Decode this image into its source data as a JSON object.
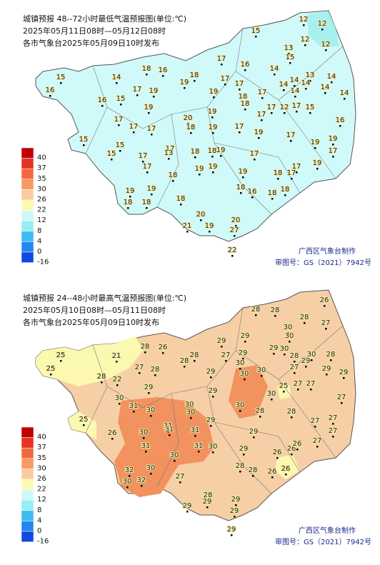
{
  "panels": [
    {
      "title": "城镇预报 48--72小时最低气温预报图(单位:℃)",
      "period": "2025年05月11日08时—05月12日08时",
      "issuer": "各市气象台2025年05月09日10时发布",
      "values": [
        15,
        16,
        14,
        18,
        16,
        18,
        19,
        17,
        19,
        16,
        15,
        19,
        17,
        17,
        19,
        18,
        18,
        17,
        14,
        14,
        14,
        13,
        14,
        14,
        14,
        14,
        12,
        17,
        15,
        16,
        16,
        17,
        15,
        12,
        12,
        12,
        12,
        13,
        15,
        14,
        17,
        17,
        17,
        20,
        18,
        19,
        19,
        17,
        17,
        17,
        19,
        17,
        19,
        19,
        17,
        15,
        15,
        15,
        17,
        17,
        13,
        18,
        18,
        19,
        17,
        17,
        18,
        19,
        19,
        19,
        18,
        17,
        17,
        19,
        19,
        19,
        18,
        18,
        18,
        18,
        16,
        18,
        18,
        20,
        21,
        19,
        20,
        27,
        22
      ]
    },
    {
      "title": "城镇预报 24--48小时最高气温预报图(单位:℃)",
      "period": "2025年05月10日08时—05月11日08时",
      "issuer": "各市气象台2025年05月09日10时发布",
      "values": [
        25,
        25,
        21,
        28,
        26,
        28,
        28,
        27,
        28,
        28,
        22,
        29,
        27,
        29,
        29,
        30,
        30,
        30,
        30,
        28,
        27,
        30,
        28,
        29,
        29,
        29,
        25,
        27,
        27,
        27,
        29,
        29,
        28,
        28,
        28,
        26,
        27,
        30,
        30,
        29,
        30,
        31,
        30,
        30,
        30,
        29,
        30,
        28,
        30,
        28,
        27,
        27,
        27,
        25,
        26,
        30,
        31,
        31,
        31,
        29,
        29,
        31,
        30,
        31,
        30,
        29,
        26,
        26,
        26,
        26,
        27,
        32,
        30,
        30,
        32,
        27,
        28,
        28,
        26,
        28,
        29,
        29,
        29,
        29,
        29
      ]
    }
  ],
  "legend": {
    "labels": [
      40,
      37,
      35,
      30,
      26,
      22,
      12,
      8,
      4,
      0,
      -16
    ],
    "colors": [
      "#c00000",
      "#e43424",
      "#f4683e",
      "#f89a66",
      "#f8cca0",
      "#fafab0",
      "#d0f8f8",
      "#96eef0",
      "#3cbcf0",
      "#2088f0",
      "#1048e0"
    ]
  },
  "footer": {
    "maker": "广西区气象台制作",
    "approval": "审图号：GS（2021）7942号"
  }
}
